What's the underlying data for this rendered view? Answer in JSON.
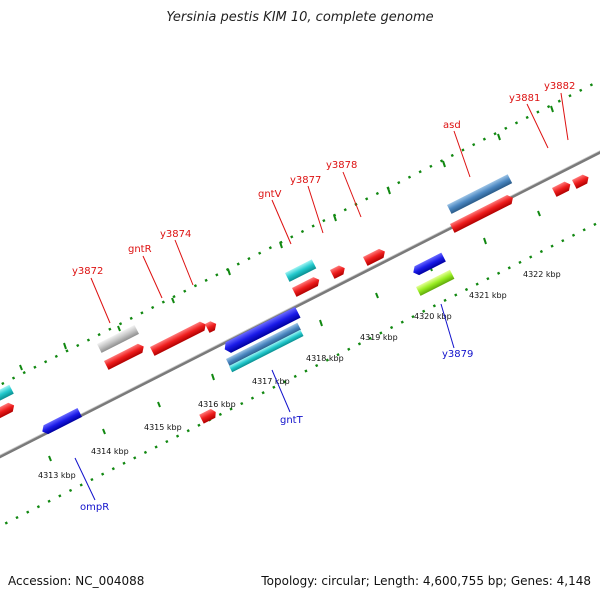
{
  "title": "Yersinia pestis KIM 10, complete genome",
  "footer": {
    "accession": "Accession: NC_004088",
    "summary": "Topology: circular; Length: 4,600,755 bp; Genes: 4,148"
  },
  "colors": {
    "forward_gene": "#e8141b",
    "reverse_gene": "#1a1ae0",
    "gene_label_forward": "#dd1111",
    "gene_label_reverse": "#1111cc",
    "backbone": "#888888",
    "tick": "#118811"
  },
  "scale_labels": [
    "4313 kbp",
    "4314 kbp",
    "4315 kbp",
    "4316 kbp",
    "4317 kbp",
    "4318 kbp",
    "4319 kbp",
    "4320 kbp",
    "4321 kbp",
    "4322 kbp"
  ],
  "gene_labels_forward": [
    "y3872",
    "gntR",
    "y3874",
    "gntV",
    "y3877",
    "y3878",
    "asd",
    "y3881",
    "y3882"
  ],
  "gene_labels_reverse": [
    "ompR",
    "gntT",
    "y3879"
  ]
}
